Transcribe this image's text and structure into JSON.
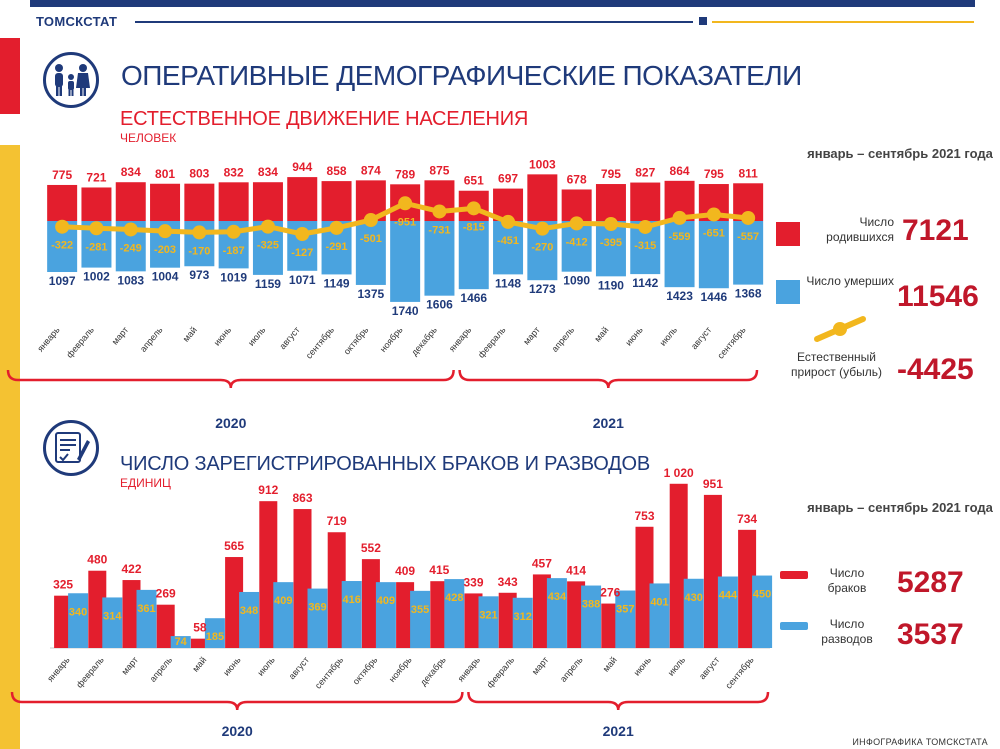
{
  "header": {
    "agency": "ТОМСКСТАТ",
    "title": "ОПЕРАТИВНЫЕ ДЕМОГРАФИЧЕСКИЕ ПОКАЗАТЕЛИ",
    "footer": "ИНФОГРАФИКА ТОМСКСТАТА"
  },
  "colors": {
    "red": "#e31e2d",
    "blue": "#4aa3df",
    "yellow": "#f2b71e",
    "navy": "#1f3a7a",
    "dark_red": "#c0172a"
  },
  "chart1": {
    "title": "ЕСТЕСТВЕННОЕ ДВИЖЕНИЕ НАСЕЛЕНИЯ",
    "unit": "ЧЕЛОВЕК",
    "summary": {
      "period": "январь – сентябрь 2021 года",
      "births_label": "Число родившихся",
      "births_value": "7121",
      "deaths_label": "Число умерших",
      "deaths_value": "11546",
      "growth_label": "Естественный прирост (убыль)",
      "growth_value": "-4425"
    }
  },
  "chart2": {
    "title": "ЧИСЛО ЗАРЕГИСТРИРОВАННЫХ БРАКОВ И РАЗВОДОВ",
    "unit": "ЕДИНИЦ",
    "summary": {
      "period": "январь – сентябрь 2021 года",
      "marriages_label": "Число браков",
      "marriages_value": "5287",
      "divorces_label": "Число разводов",
      "divorces_value": "3537"
    }
  },
  "chart_data": [
    {
      "type": "bar",
      "title": "ЕСТЕСТВЕННОЕ ДВИЖЕНИЕ НАСЕЛЕНИЯ",
      "ylabel": "человек",
      "categories": [
        "январь",
        "февраль",
        "март",
        "апрель",
        "май",
        "июнь",
        "июль",
        "август",
        "сентябрь",
        "октябрь",
        "ноябрь",
        "декабрь",
        "январь",
        "февраль",
        "март",
        "апрель",
        "май",
        "июнь",
        "июль",
        "август",
        "сентябрь"
      ],
      "year_groups": [
        {
          "label": "2020",
          "count": 12
        },
        {
          "label": "2021",
          "count": 9
        }
      ],
      "series": [
        {
          "name": "Число родившихся",
          "values": [
            775,
            721,
            834,
            801,
            803,
            832,
            834,
            944,
            858,
            874,
            789,
            875,
            651,
            697,
            1003,
            678,
            795,
            827,
            864,
            795,
            811
          ]
        },
        {
          "name": "Число умерших",
          "values": [
            1097,
            1002,
            1083,
            1004,
            973,
            1019,
            1159,
            1071,
            1149,
            1375,
            1740,
            1606,
            1466,
            1148,
            1273,
            1090,
            1190,
            1142,
            1423,
            1446,
            1368
          ]
        },
        {
          "name": "Естественный прирост (убыль)",
          "values": [
            -322,
            -281,
            -249,
            -203,
            -170,
            -187,
            -325,
            -127,
            -291,
            -501,
            -951,
            -731,
            -815,
            -451,
            -270,
            -412,
            -395,
            -315,
            -559,
            -651,
            -557
          ]
        }
      ]
    },
    {
      "type": "bar",
      "title": "ЧИСЛО ЗАРЕГИСТРИРОВАННЫХ БРАКОВ И РАЗВОДОВ",
      "ylabel": "единиц",
      "categories": [
        "январь",
        "февраль",
        "март",
        "апрель",
        "май",
        "июнь",
        "июль",
        "август",
        "сентябрь",
        "октябрь",
        "ноябрь",
        "декабрь",
        "январь",
        "февраль",
        "март",
        "апрель",
        "май",
        "июнь",
        "июль",
        "август",
        "сентябрь"
      ],
      "year_groups": [
        {
          "label": "2020",
          "count": 12
        },
        {
          "label": "2021",
          "count": 9
        }
      ],
      "series": [
        {
          "name": "Число браков",
          "values": [
            325,
            480,
            422,
            269,
            58,
            565,
            912,
            863,
            719,
            552,
            409,
            415,
            339,
            343,
            457,
            414,
            276,
            753,
            "1 020",
            951,
            734
          ]
        },
        {
          "name": "Число разводов",
          "values": [
            340,
            314,
            361,
            74,
            185,
            348,
            409,
            369,
            416,
            409,
            355,
            428,
            321,
            312,
            434,
            388,
            357,
            401,
            430,
            444,
            450
          ]
        }
      ]
    }
  ]
}
